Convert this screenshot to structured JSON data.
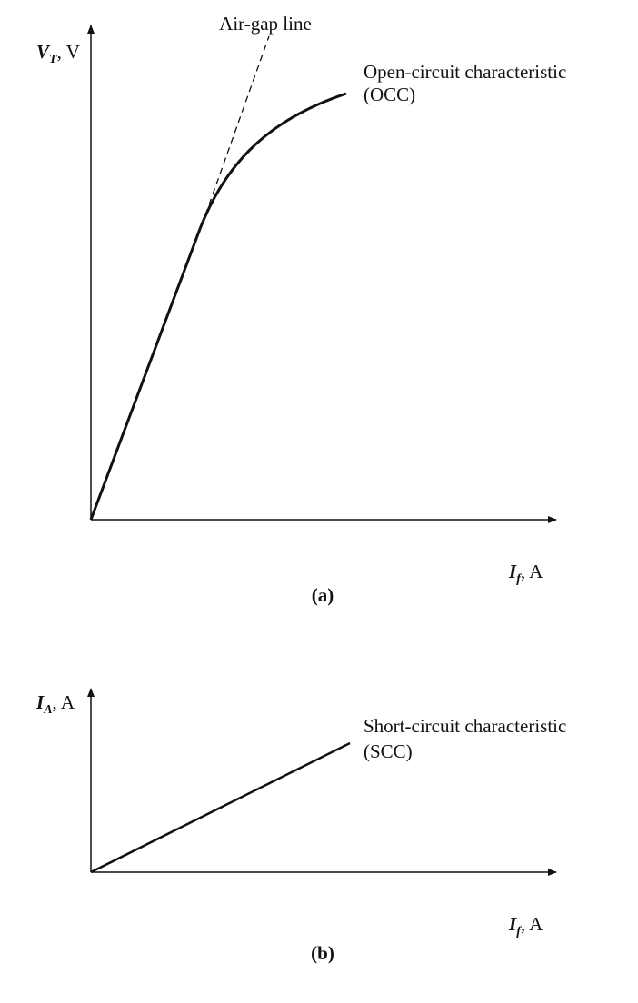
{
  "panel_a": {
    "annotation": "Air-gap line",
    "y_axis_label": {
      "symbol": "V",
      "subscript": "T",
      "unit": ", V"
    },
    "curve_label": [
      "Open-circuit characteristic",
      "(OCC)"
    ],
    "x_axis_label": {
      "symbol": "I",
      "subscript": "f",
      "unit": ", A"
    },
    "caption": "(a)"
  },
  "panel_b": {
    "y_axis_label": {
      "symbol": "I",
      "subscript": "A",
      "unit": ", A"
    },
    "curve_label": [
      "Short-circuit characteristic",
      "(SCC)"
    ],
    "x_axis_label": {
      "symbol": "I",
      "subscript": "f",
      "unit": ", A"
    },
    "caption": "(b)"
  }
}
